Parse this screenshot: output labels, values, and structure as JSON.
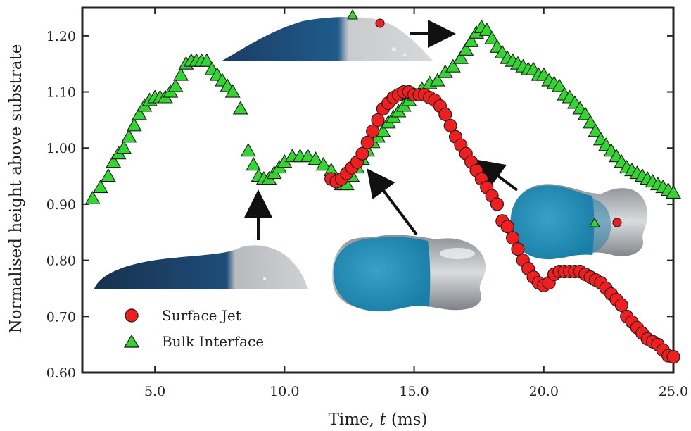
{
  "chart_data": {
    "type": "scatter",
    "xlabel": "Time, t (ms)",
    "xlabel_prefix": "Time, ",
    "xlabel_var": "t",
    "xlabel_suffix": " (ms)",
    "ylabel": "Normalised height above substrate",
    "xlim": [
      2.2,
      25.0
    ],
    "ylim": [
      0.6,
      1.25
    ],
    "xticks": [
      5.0,
      10.0,
      15.0,
      20.0,
      25.0
    ],
    "xtick_labels": [
      "5.0",
      "10.0",
      "15.0",
      "20.0",
      "25.0"
    ],
    "yticks": [
      0.6,
      0.7,
      0.8,
      0.9,
      1.0,
      1.1,
      1.2
    ],
    "ytick_labels": [
      "0.60",
      "0.70",
      "0.80",
      "0.90",
      "1.00",
      "1.10",
      "1.20"
    ],
    "grid": false,
    "legend_position": "bottom-left",
    "series": [
      {
        "name": "Surface Jet",
        "marker": "circle",
        "color": "#f01e1e",
        "points": [
          [
            11.8,
            0.945
          ],
          [
            12.0,
            0.94
          ],
          [
            12.2,
            0.945
          ],
          [
            12.4,
            0.955
          ],
          [
            12.6,
            0.965
          ],
          [
            12.8,
            0.975
          ],
          [
            13.0,
            0.99
          ],
          [
            13.2,
            1.01
          ],
          [
            13.4,
            1.03
          ],
          [
            13.6,
            1.05
          ],
          [
            13.8,
            1.07
          ],
          [
            14.0,
            1.08
          ],
          [
            14.2,
            1.09
          ],
          [
            14.4,
            1.095
          ],
          [
            14.6,
            1.1
          ],
          [
            14.8,
            1.1
          ],
          [
            15.0,
            1.095
          ],
          [
            15.2,
            1.095
          ],
          [
            15.4,
            1.095
          ],
          [
            15.6,
            1.09
          ],
          [
            15.8,
            1.085
          ],
          [
            16.0,
            1.075
          ],
          [
            16.2,
            1.06
          ],
          [
            16.4,
            1.04
          ],
          [
            16.6,
            1.02
          ],
          [
            16.8,
            1.005
          ],
          [
            17.0,
            0.99
          ],
          [
            17.2,
            0.975
          ],
          [
            17.4,
            0.96
          ],
          [
            17.6,
            0.945
          ],
          [
            17.8,
            0.93
          ],
          [
            18.0,
            0.915
          ],
          [
            18.2,
            0.9
          ],
          [
            18.4,
            0.87
          ],
          [
            18.6,
            0.86
          ],
          [
            18.8,
            0.84
          ],
          [
            19.0,
            0.82
          ],
          [
            19.2,
            0.8
          ],
          [
            19.4,
            0.785
          ],
          [
            19.6,
            0.77
          ],
          [
            19.8,
            0.76
          ],
          [
            20.0,
            0.755
          ],
          [
            20.2,
            0.76
          ],
          [
            20.4,
            0.775
          ],
          [
            20.6,
            0.78
          ],
          [
            20.8,
            0.78
          ],
          [
            21.0,
            0.78
          ],
          [
            21.2,
            0.78
          ],
          [
            21.4,
            0.78
          ],
          [
            21.6,
            0.775
          ],
          [
            21.8,
            0.77
          ],
          [
            22.0,
            0.765
          ],
          [
            22.2,
            0.76
          ],
          [
            22.4,
            0.75
          ],
          [
            22.6,
            0.74
          ],
          [
            22.8,
            0.73
          ],
          [
            23.0,
            0.72
          ],
          [
            23.2,
            0.7
          ],
          [
            23.4,
            0.69
          ],
          [
            23.6,
            0.68
          ],
          [
            23.8,
            0.67
          ],
          [
            24.0,
            0.66
          ],
          [
            24.2,
            0.655
          ],
          [
            24.4,
            0.65
          ],
          [
            24.6,
            0.64
          ],
          [
            24.8,
            0.63
          ],
          [
            25.0,
            0.628
          ]
        ]
      },
      {
        "name": "Bulk Interface",
        "marker": "triangle",
        "color": "#33d630",
        "points": [
          [
            2.6,
            0.91
          ],
          [
            2.9,
            0.93
          ],
          [
            3.2,
            0.95
          ],
          [
            3.4,
            0.975
          ],
          [
            3.6,
            0.99
          ],
          [
            3.8,
            1.0
          ],
          [
            4.0,
            1.02
          ],
          [
            4.2,
            1.04
          ],
          [
            4.4,
            1.06
          ],
          [
            4.6,
            1.075
          ],
          [
            4.8,
            1.085
          ],
          [
            5.0,
            1.09
          ],
          [
            5.2,
            1.09
          ],
          [
            5.4,
            1.09
          ],
          [
            5.6,
            1.1
          ],
          [
            5.8,
            1.11
          ],
          [
            6.0,
            1.13
          ],
          [
            6.2,
            1.15
          ],
          [
            6.4,
            1.155
          ],
          [
            6.6,
            1.155
          ],
          [
            6.8,
            1.155
          ],
          [
            7.0,
            1.155
          ],
          [
            7.2,
            1.14
          ],
          [
            7.4,
            1.13
          ],
          [
            7.6,
            1.12
          ],
          [
            7.8,
            1.11
          ],
          [
            8.0,
            1.1
          ],
          [
            8.3,
            1.07
          ],
          [
            8.6,
            0.995
          ],
          [
            8.8,
            0.97
          ],
          [
            9.0,
            0.95
          ],
          [
            9.2,
            0.945
          ],
          [
            9.4,
            0.945
          ],
          [
            9.6,
            0.955
          ],
          [
            9.8,
            0.965
          ],
          [
            10.0,
            0.975
          ],
          [
            10.3,
            0.985
          ],
          [
            10.6,
            0.985
          ],
          [
            10.9,
            0.985
          ],
          [
            11.2,
            0.98
          ],
          [
            11.5,
            0.97
          ],
          [
            11.8,
            0.96
          ],
          [
            12.0,
            0.945
          ],
          [
            12.2,
            0.935
          ],
          [
            12.4,
            0.935
          ],
          [
            12.6,
            0.95
          ],
          [
            12.8,
            0.965
          ],
          [
            13.0,
            0.98
          ],
          [
            13.2,
            0.995
          ],
          [
            13.4,
            1.01
          ],
          [
            13.6,
            1.02
          ],
          [
            13.8,
            1.03
          ],
          [
            14.0,
            1.045
          ],
          [
            14.2,
            1.055
          ],
          [
            14.4,
            1.065
          ],
          [
            14.6,
            1.075
          ],
          [
            14.8,
            1.085
          ],
          [
            15.0,
            1.095
          ],
          [
            15.3,
            1.105
          ],
          [
            15.6,
            1.115
          ],
          [
            15.9,
            1.12
          ],
          [
            16.2,
            1.135
          ],
          [
            16.5,
            1.145
          ],
          [
            16.8,
            1.16
          ],
          [
            17.0,
            1.175
          ],
          [
            17.2,
            1.19
          ],
          [
            17.4,
            1.205
          ],
          [
            17.6,
            1.215
          ],
          [
            17.8,
            1.21
          ],
          [
            18.0,
            1.195
          ],
          [
            18.2,
            1.18
          ],
          [
            18.4,
            1.17
          ],
          [
            18.6,
            1.16
          ],
          [
            18.8,
            1.155
          ],
          [
            19.0,
            1.15
          ],
          [
            19.2,
            1.145
          ],
          [
            19.4,
            1.14
          ],
          [
            19.6,
            1.14
          ],
          [
            19.8,
            1.13
          ],
          [
            20.0,
            1.13
          ],
          [
            20.2,
            1.12
          ],
          [
            20.4,
            1.115
          ],
          [
            20.6,
            1.11
          ],
          [
            20.8,
            1.095
          ],
          [
            21.0,
            1.09
          ],
          [
            21.2,
            1.08
          ],
          [
            21.4,
            1.07
          ],
          [
            21.6,
            1.06
          ],
          [
            21.8,
            1.045
          ],
          [
            22.0,
            1.03
          ],
          [
            22.2,
            1.015
          ],
          [
            22.4,
            1.005
          ],
          [
            22.6,
            0.995
          ],
          [
            22.8,
            0.985
          ],
          [
            23.0,
            0.975
          ],
          [
            23.2,
            0.965
          ],
          [
            23.4,
            0.96
          ],
          [
            23.6,
            0.955
          ],
          [
            23.8,
            0.95
          ],
          [
            24.0,
            0.945
          ],
          [
            24.2,
            0.94
          ],
          [
            24.4,
            0.935
          ],
          [
            24.6,
            0.93
          ],
          [
            24.8,
            0.925
          ],
          [
            25.0,
            0.92
          ]
        ]
      }
    ]
  },
  "colors": {
    "surface_jet": "#f01e1e",
    "bulk_interface": "#33d630",
    "dye_blue": "#1d5f8c",
    "droplet_grey": "#c8cacc",
    "marker_edge": "#1a1a1a",
    "axis": "#222222"
  }
}
